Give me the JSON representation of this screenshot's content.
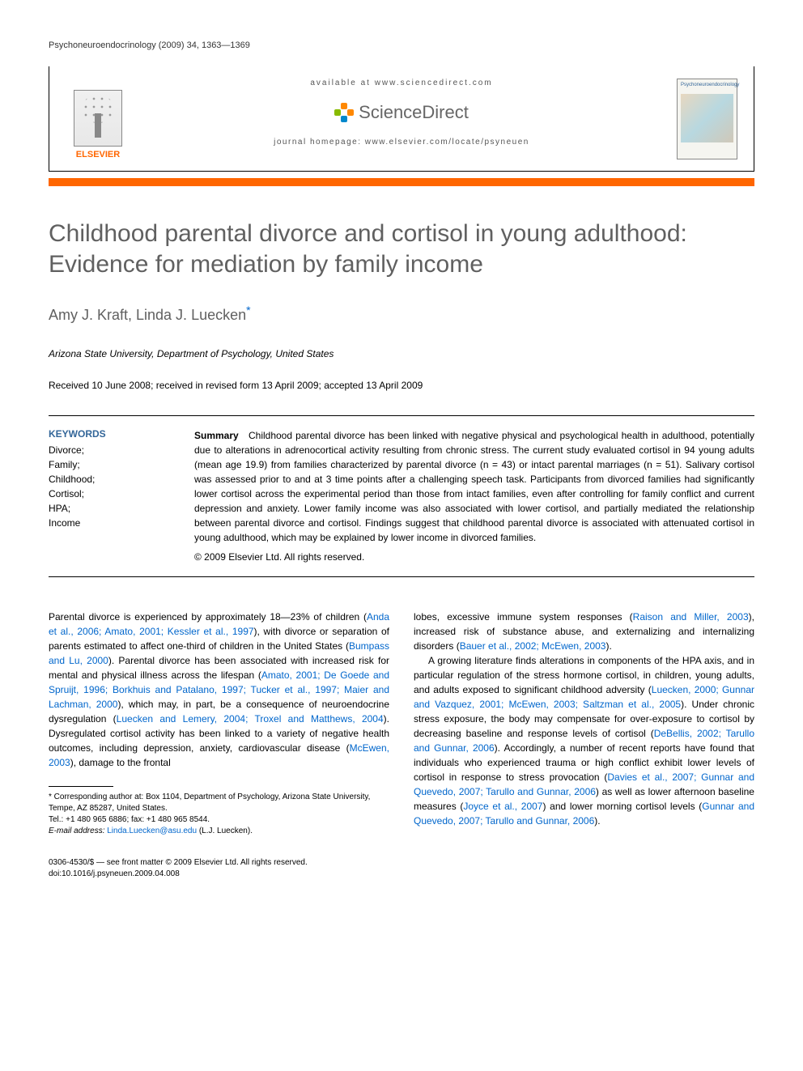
{
  "runningHeader": "Psychoneuroendocrinology (2009) 34, 1363—1369",
  "header": {
    "publisherName": "ELSEVIER",
    "availableAt": "available at www.sciencedirect.com",
    "platformName": "ScienceDirect",
    "homepagePrefix": "journal homepage:",
    "homepageUrl": "www.elsevier.com/locate/psyneuen",
    "journalCoverTitle": "Psychoneuroendocrinology"
  },
  "title": "Childhood parental divorce and cortisol in young adulthood: Evidence for mediation by family income",
  "authors": "Amy J. Kraft, Linda J. Luecken",
  "affiliation": "Arizona State University, Department of Psychology, United States",
  "dates": "Received 10 June 2008; received in revised form 13 April 2009; accepted 13 April 2009",
  "keywordsHeading": "KEYWORDS",
  "keywords": [
    "Divorce;",
    "Family;",
    "Childhood;",
    "Cortisol;",
    "HPA;",
    "Income"
  ],
  "summaryLabel": "Summary",
  "summaryText": "Childhood parental divorce has been linked with negative physical and psychological health in adulthood, potentially due to alterations in adrenocortical activity resulting from chronic stress. The current study evaluated cortisol in 94 young adults (mean age 19.9) from families characterized by parental divorce (n = 43) or intact parental marriages (n = 51). Salivary cortisol was assessed prior to and at 3 time points after a challenging speech task. Participants from divorced families had significantly lower cortisol across the experimental period than those from intact families, even after controlling for family conflict and current depression and anxiety. Lower family income was also associated with lower cortisol, and partially mediated the relationship between parental divorce and cortisol. Findings suggest that childhood parental divorce is associated with attenuated cortisol in young adulthood, which may be explained by lower income in divorced families.",
  "copyright": "© 2009 Elsevier Ltd. All rights reserved.",
  "bodyLeft": {
    "p1a": "Parental divorce is experienced by approximately 18—23% of children (",
    "c1": "Anda et al., 2006; Amato, 2001; Kessler et al., 1997",
    "p1b": "), with divorce or separation of parents estimated to affect one-third of children in the United States (",
    "c2": "Bumpass and Lu, 2000",
    "p1c": "). Parental divorce has been associated with increased risk for mental and physical illness across the lifespan (",
    "c3": "Amato, 2001; De Goede and Spruijt, 1996; Borkhuis and Patalano, 1997; Tucker et al., 1997; Maier and Lachman, 2000",
    "p1d": "), which may, in part, be a consequence of neuroendocrine dysregulation (",
    "c4": "Luecken and Lemery, 2004; Troxel and Matthews, 2004",
    "p1e": "). Dysregulated cortisol activity has been linked to a variety of negative health outcomes, including depression, anxiety, cardiovascular disease (",
    "c5": "McEwen, 2003",
    "p1f": "), damage to the frontal"
  },
  "bodyRight": {
    "p1a": "lobes, excessive immune system responses (",
    "c1": "Raison and Miller, 2003",
    "p1b": "), increased risk of substance abuse, and externalizing and internalizing disorders (",
    "c2": "Bauer et al., 2002; McEwen, 2003",
    "p1c": ").",
    "p2a": "A growing literature finds alterations in components of the HPA axis, and in particular regulation of the stress hormone cortisol, in children, young adults, and adults exposed to significant childhood adversity (",
    "c3": "Luecken, 2000; Gunnar and Vazquez, 2001; McEwen, 2003; Saltzman et al., 2005",
    "p2b": "). Under chronic stress exposure, the body may compensate for over-exposure to cortisol by decreasing baseline and response levels of cortisol (",
    "c4": "DeBellis, 2002; Tarullo and Gunnar, 2006",
    "p2c": "). Accordingly, a number of recent reports have found that individuals who experienced trauma or high conflict exhibit lower levels of cortisol in response to stress provocation (",
    "c5": "Davies et al., 2007; Gunnar and Quevedo, 2007; Tarullo and Gunnar, 2006",
    "p2d": ") as well as lower afternoon baseline measures (",
    "c6": "Joyce et al., 2007",
    "p2e": ") and lower morning cortisol levels (",
    "c7": "Gunnar and Quevedo, 2007; Tarullo and Gunnar, 2006",
    "p2f": ")."
  },
  "footnote": {
    "corrLabel": "* Corresponding author at:",
    "corrAddress": "Box 1104, Department of Psychology, Arizona State University, Tempe, AZ 85287, United States.",
    "tel": "Tel.: +1 480 965 6886; fax: +1 480 965 8544.",
    "emailLabel": "E-mail address:",
    "email": "Linda.Luecken@asu.edu",
    "emailSuffix": "(L.J. Luecken)."
  },
  "bottom": {
    "line1": "0306-4530/$ — see front matter © 2009 Elsevier Ltd. All rights reserved.",
    "line2": "doi:10.1016/j.psyneuen.2009.04.008"
  },
  "colors": {
    "orange": "#ff6600",
    "link": "#0066cc",
    "titleGray": "#606060",
    "keywordBlue": "#336699"
  }
}
